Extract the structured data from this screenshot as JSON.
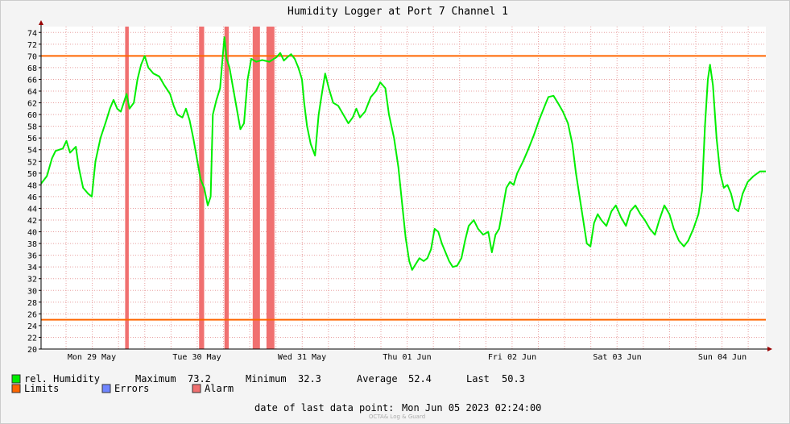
{
  "chart_data": {
    "type": "line",
    "title": "Humidity Logger at Port 7 Channel 1",
    "xlabel": "",
    "ylabel": "",
    "ylim": [
      20,
      75
    ],
    "xlim": [
      0,
      1.0
    ],
    "y_ticks": [
      20,
      22,
      24,
      26,
      28,
      30,
      32,
      34,
      36,
      38,
      40,
      42,
      44,
      46,
      48,
      50,
      52,
      54,
      56,
      58,
      60,
      62,
      64,
      66,
      68,
      70,
      72,
      74
    ],
    "x_ticks": [
      {
        "x": 0.07,
        "label": "Mon 29 May"
      },
      {
        "x": 0.215,
        "label": "Tue 30 May"
      },
      {
        "x": 0.36,
        "label": "Wed 31 May"
      },
      {
        "x": 0.505,
        "label": "Thu 01 Jun"
      },
      {
        "x": 0.65,
        "label": "Fri 02 Jun"
      },
      {
        "x": 0.795,
        "label": "Sat 03 Jun"
      },
      {
        "x": 0.94,
        "label": "Sun 04 Jun"
      }
    ],
    "grid": true,
    "colors": {
      "humidity": "#00ee00",
      "limits": "#ff6600",
      "errors": "#6f85ff",
      "alarm": "#f07070",
      "grid": "#e8a0a0",
      "axis": "#000000",
      "arrow": "#990000"
    },
    "series": [
      {
        "name": "rel. Humidity",
        "points": [
          [
            0.0,
            48.2
          ],
          [
            0.008,
            49.5
          ],
          [
            0.015,
            52.5
          ],
          [
            0.02,
            53.8
          ],
          [
            0.03,
            54.2
          ],
          [
            0.035,
            55.5
          ],
          [
            0.04,
            53.5
          ],
          [
            0.048,
            54.5
          ],
          [
            0.052,
            51.0
          ],
          [
            0.058,
            47.5
          ],
          [
            0.065,
            46.5
          ],
          [
            0.07,
            46.0
          ],
          [
            0.075,
            52.0
          ],
          [
            0.082,
            56.0
          ],
          [
            0.09,
            59.0
          ],
          [
            0.095,
            61.0
          ],
          [
            0.1,
            62.5
          ],
          [
            0.105,
            61.0
          ],
          [
            0.11,
            60.5
          ],
          [
            0.118,
            63.5
          ],
          [
            0.122,
            61.0
          ],
          [
            0.128,
            62.0
          ],
          [
            0.133,
            66.0
          ],
          [
            0.138,
            68.5
          ],
          [
            0.143,
            70.0
          ],
          [
            0.148,
            68.0
          ],
          [
            0.155,
            67.0
          ],
          [
            0.163,
            66.5
          ],
          [
            0.17,
            65.0
          ],
          [
            0.178,
            63.5
          ],
          [
            0.183,
            61.5
          ],
          [
            0.188,
            60.0
          ],
          [
            0.195,
            59.5
          ],
          [
            0.2,
            61.0
          ],
          [
            0.205,
            59.0
          ],
          [
            0.21,
            56.0
          ],
          [
            0.215,
            52.5
          ],
          [
            0.22,
            49.0
          ],
          [
            0.225,
            47.5
          ],
          [
            0.23,
            44.5
          ],
          [
            0.234,
            46.0
          ],
          [
            0.237,
            60.0
          ],
          [
            0.242,
            62.5
          ],
          [
            0.247,
            64.5
          ],
          [
            0.25,
            69.0
          ],
          [
            0.253,
            73.2
          ],
          [
            0.256,
            69.5
          ],
          [
            0.26,
            68.0
          ],
          [
            0.265,
            64.5
          ],
          [
            0.27,
            61.0
          ],
          [
            0.275,
            57.5
          ],
          [
            0.28,
            58.5
          ],
          [
            0.285,
            66.0
          ],
          [
            0.29,
            69.5
          ],
          [
            0.297,
            69.0
          ],
          [
            0.305,
            69.3
          ],
          [
            0.315,
            69.0
          ],
          [
            0.325,
            69.8
          ],
          [
            0.33,
            70.5
          ],
          [
            0.335,
            69.2
          ],
          [
            0.34,
            69.8
          ],
          [
            0.345,
            70.3
          ],
          [
            0.35,
            69.5
          ],
          [
            0.355,
            68.0
          ],
          [
            0.36,
            66.0
          ],
          [
            0.363,
            62.0
          ],
          [
            0.367,
            58.0
          ],
          [
            0.372,
            55.0
          ],
          [
            0.378,
            53.0
          ],
          [
            0.383,
            60.0
          ],
          [
            0.388,
            64.0
          ],
          [
            0.392,
            67.0
          ],
          [
            0.397,
            64.5
          ],
          [
            0.403,
            62.0
          ],
          [
            0.41,
            61.5
          ],
          [
            0.417,
            60.0
          ],
          [
            0.424,
            58.5
          ],
          [
            0.43,
            59.5
          ],
          [
            0.435,
            61.0
          ],
          [
            0.44,
            59.5
          ],
          [
            0.447,
            60.5
          ],
          [
            0.455,
            63.0
          ],
          [
            0.462,
            64.0
          ],
          [
            0.468,
            65.5
          ],
          [
            0.475,
            64.5
          ],
          [
            0.48,
            60.0
          ],
          [
            0.487,
            56.0
          ],
          [
            0.493,
            51.0
          ],
          [
            0.498,
            45.0
          ],
          [
            0.503,
            39.0
          ],
          [
            0.508,
            35.0
          ],
          [
            0.512,
            33.5
          ],
          [
            0.517,
            34.5
          ],
          [
            0.522,
            35.5
          ],
          [
            0.528,
            35.0
          ],
          [
            0.533,
            35.5
          ],
          [
            0.538,
            37.0
          ],
          [
            0.543,
            40.5
          ],
          [
            0.548,
            40.0
          ],
          [
            0.553,
            38.0
          ],
          [
            0.558,
            36.5
          ],
          [
            0.563,
            35.0
          ],
          [
            0.568,
            34.0
          ],
          [
            0.574,
            34.2
          ],
          [
            0.58,
            35.5
          ],
          [
            0.585,
            38.5
          ],
          [
            0.59,
            41.0
          ],
          [
            0.597,
            42.0
          ],
          [
            0.603,
            40.5
          ],
          [
            0.61,
            39.5
          ],
          [
            0.617,
            40.0
          ],
          [
            0.622,
            36.5
          ],
          [
            0.627,
            39.5
          ],
          [
            0.632,
            40.5
          ],
          [
            0.637,
            44.0
          ],
          [
            0.642,
            47.5
          ],
          [
            0.647,
            48.5
          ],
          [
            0.652,
            48.0
          ],
          [
            0.657,
            50.0
          ],
          [
            0.665,
            52.0
          ],
          [
            0.672,
            54.0
          ],
          [
            0.68,
            56.5
          ],
          [
            0.687,
            59.0
          ],
          [
            0.695,
            61.5
          ],
          [
            0.7,
            63.0
          ],
          [
            0.707,
            63.2
          ],
          [
            0.713,
            62.0
          ],
          [
            0.72,
            60.5
          ],
          [
            0.727,
            58.5
          ],
          [
            0.733,
            55.0
          ],
          [
            0.738,
            50.0
          ],
          [
            0.743,
            46.0
          ],
          [
            0.748,
            42.0
          ],
          [
            0.753,
            38.0
          ],
          [
            0.758,
            37.5
          ],
          [
            0.763,
            41.5
          ],
          [
            0.768,
            43.0
          ],
          [
            0.773,
            42.0
          ],
          [
            0.78,
            41.0
          ],
          [
            0.787,
            43.5
          ],
          [
            0.793,
            44.5
          ],
          [
            0.8,
            42.5
          ],
          [
            0.807,
            41.0
          ],
          [
            0.813,
            43.5
          ],
          [
            0.82,
            44.5
          ],
          [
            0.827,
            43.0
          ],
          [
            0.833,
            42.0
          ],
          [
            0.84,
            40.5
          ],
          [
            0.847,
            39.5
          ],
          [
            0.853,
            42.0
          ],
          [
            0.86,
            44.5
          ],
          [
            0.867,
            43.0
          ],
          [
            0.873,
            40.5
          ],
          [
            0.88,
            38.5
          ],
          [
            0.887,
            37.5
          ],
          [
            0.893,
            38.5
          ],
          [
            0.9,
            40.5
          ],
          [
            0.907,
            43.0
          ],
          [
            0.912,
            47.0
          ],
          [
            0.916,
            58.0
          ],
          [
            0.92,
            66.0
          ],
          [
            0.923,
            68.5
          ],
          [
            0.927,
            65.0
          ],
          [
            0.932,
            56.0
          ],
          [
            0.937,
            50.0
          ],
          [
            0.942,
            47.5
          ],
          [
            0.947,
            48.0
          ],
          [
            0.952,
            46.5
          ],
          [
            0.957,
            44.0
          ],
          [
            0.962,
            43.5
          ],
          [
            0.968,
            46.5
          ],
          [
            0.975,
            48.5
          ],
          [
            0.983,
            49.5
          ],
          [
            0.992,
            50.3
          ],
          [
            1.0,
            50.3
          ]
        ]
      }
    ],
    "limits": [
      25,
      70
    ],
    "alarm_bands": [
      [
        0.116,
        0.121
      ],
      [
        0.218,
        0.225
      ],
      [
        0.253,
        0.259
      ],
      [
        0.292,
        0.302
      ],
      [
        0.311,
        0.322
      ]
    ]
  },
  "legend": {
    "humidity_label": "rel. Humidity",
    "maximum_label": "Maximum",
    "maximum_value": "73.2",
    "minimum_label": "Minimum",
    "minimum_value": "32.3",
    "average_label": "Average",
    "average_value": "52.4",
    "last_label": "Last",
    "last_value": "50.3",
    "limits_label": "Limits",
    "errors_label": "Errors",
    "alarm_label": "Alarm"
  },
  "footer": {
    "last_point_label": "date of last data point:",
    "last_point_value": "Mon Jun 05 2023 02:24:00",
    "watermark": "OCTA& Log & Guard"
  }
}
